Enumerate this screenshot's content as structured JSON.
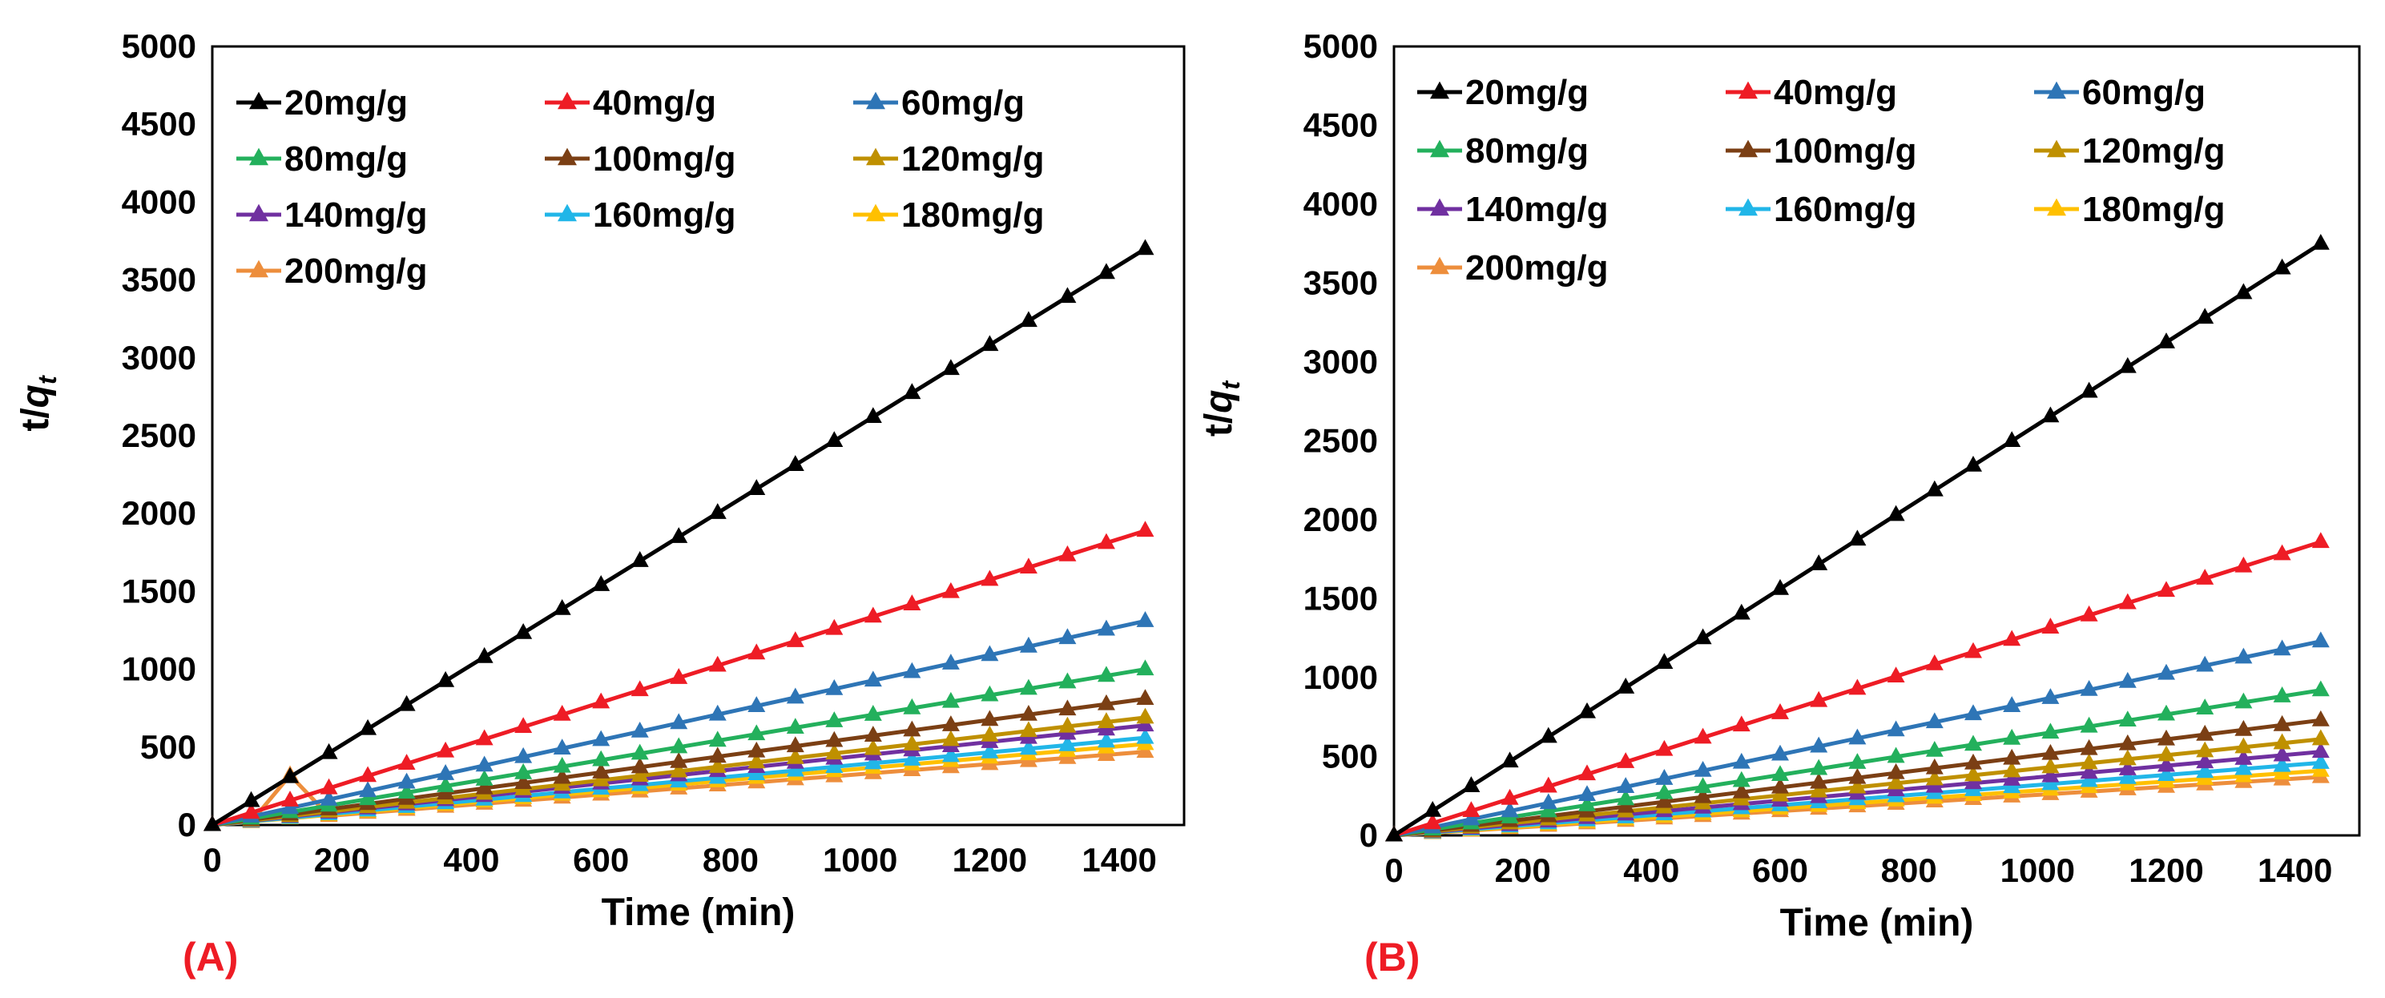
{
  "colors": {
    "s20": "#000000",
    "s40": "#ee1c25",
    "s60": "#2e75b6",
    "s80": "#23b05c",
    "s100": "#7b3f14",
    "s120": "#bf9000",
    "s140": "#7030a0",
    "s160": "#21b6e8",
    "s180": "#ffc000",
    "s200": "#ed8e3c",
    "panel_label": "#ee1c25"
  },
  "chart_data": [
    {
      "panel": "(A)",
      "type": "line",
      "xlabel": "Time (min)",
      "ylabel_main": "t/q",
      "ylabel_sub": "t",
      "xlim": [
        0,
        1500
      ],
      "ylim": [
        0,
        5000
      ],
      "xticks": [
        "0",
        "200",
        "400",
        "600",
        "800",
        "1000",
        "1200",
        "1400"
      ],
      "yticks": [
        "0",
        "500",
        "1000",
        "1500",
        "2000",
        "2500",
        "3000",
        "3500",
        "4000",
        "4500",
        "5000"
      ],
      "legend": "top-left",
      "time_step": 60,
      "time_max": 1440,
      "series": [
        {
          "name": "20mg/g",
          "color": "s20",
          "end": 3700
        },
        {
          "name": "40mg/g",
          "color": "s40",
          "end": 1890
        },
        {
          "name": "60mg/g",
          "color": "s60",
          "end": 1310
        },
        {
          "name": "80mg/g",
          "color": "s80",
          "end": 1000
        },
        {
          "name": "100mg/g",
          "color": "s100",
          "end": 810
        },
        {
          "name": "120mg/g",
          "color": "s120",
          "end": 690
        },
        {
          "name": "140mg/g",
          "color": "s140",
          "end": 640
        },
        {
          "name": "160mg/g",
          "color": "s160",
          "end": 560
        },
        {
          "name": "180mg/g",
          "color": "s180",
          "end": 520
        },
        {
          "name": "200mg/g",
          "color": "s200",
          "end": 470,
          "anomaly": {
            "time": 120,
            "value": 320
          }
        }
      ]
    },
    {
      "panel": "(B)",
      "type": "line",
      "xlabel": "Time (min)",
      "ylabel_main": "t/q",
      "ylabel_sub": "t",
      "xlim": [
        0,
        1500
      ],
      "ylim": [
        0,
        5000
      ],
      "xticks": [
        "0",
        "200",
        "400",
        "600",
        "800",
        "1000",
        "1200",
        "1400"
      ],
      "yticks": [
        "0",
        "500",
        "1000",
        "1500",
        "2000",
        "2500",
        "3000",
        "3500",
        "4000",
        "4500",
        "5000"
      ],
      "legend": "top-left",
      "time_step": 60,
      "time_max": 1440,
      "series": [
        {
          "name": "20mg/g",
          "color": "s20",
          "end": 3750
        },
        {
          "name": "40mg/g",
          "color": "s40",
          "end": 1860
        },
        {
          "name": "60mg/g",
          "color": "s60",
          "end": 1230
        },
        {
          "name": "80mg/g",
          "color": "s80",
          "end": 920
        },
        {
          "name": "100mg/g",
          "color": "s100",
          "end": 730
        },
        {
          "name": "120mg/g",
          "color": "s120",
          "end": 610
        },
        {
          "name": "140mg/g",
          "color": "s140",
          "end": 530
        },
        {
          "name": "160mg/g",
          "color": "s160",
          "end": 460
        },
        {
          "name": "180mg/g",
          "color": "s180",
          "end": 410
        },
        {
          "name": "200mg/g",
          "color": "s200",
          "end": 370
        }
      ]
    }
  ]
}
